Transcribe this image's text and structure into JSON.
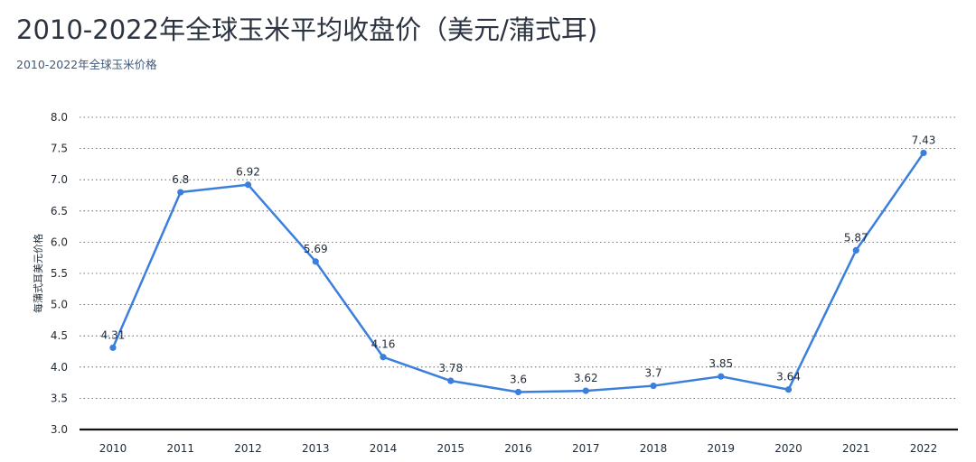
{
  "header": {
    "title": "2010-2022年全球玉米平均收盘价（美元/蒲式耳)",
    "subtitle": "2010-2022年全球玉米价格"
  },
  "chart_data": {
    "type": "line",
    "title": "2010-2022年全球玉米平均收盘价（美元/蒲式耳)",
    "subtitle": "2010-2022年全球玉米价格",
    "xlabel": "",
    "ylabel": "每蒲式耳美元价格",
    "categories": [
      "2010",
      "2011",
      "2012",
      "2013",
      "2014",
      "2015",
      "2016",
      "2017",
      "2018",
      "2019",
      "2020",
      "2021",
      "2022"
    ],
    "series": [
      {
        "values": [
          4.31,
          6.8,
          6.92,
          5.69,
          4.16,
          3.78,
          3.6,
          3.62,
          3.7,
          3.85,
          3.64,
          5.87,
          7.43
        ],
        "labels": [
          "4.31",
          "6.8",
          "6.92",
          "5.69",
          "4.16",
          "3.78",
          "3.6",
          "3.62",
          "3.7",
          "3.85",
          "3.64",
          "5.87",
          "7.43"
        ],
        "color": "#3a7fdc"
      }
    ],
    "ylim": [
      3.0,
      8.0
    ],
    "yticks": [
      "3.0",
      "3.5",
      "4.0",
      "4.5",
      "5.0",
      "5.5",
      "6.0",
      "6.5",
      "7.0",
      "7.5",
      "8.0"
    ],
    "grid": "horizontal-dotted",
    "legend": "none"
  }
}
